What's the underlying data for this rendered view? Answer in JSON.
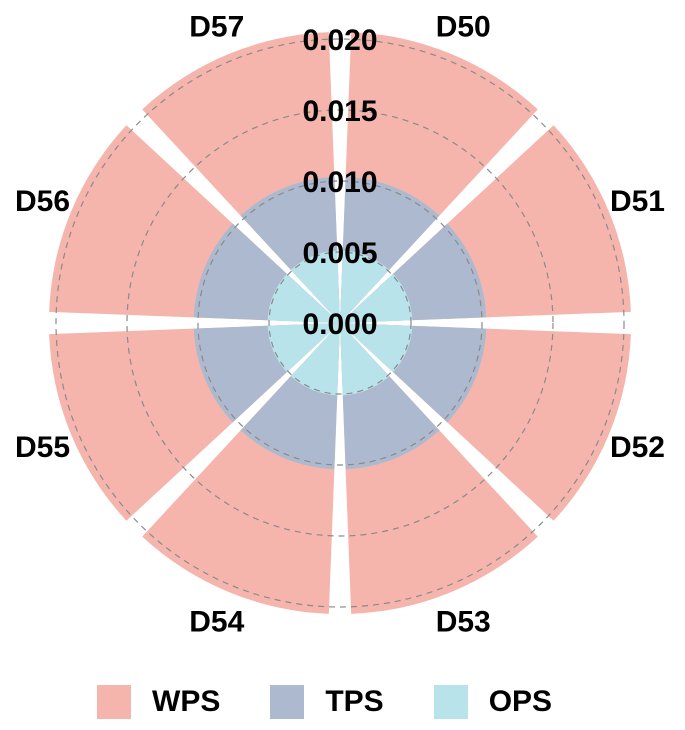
{
  "chart_data": {
    "type": "bar",
    "subtype": "polar-stacked-rose",
    "title": "",
    "categories": [
      "D50",
      "D51",
      "D52",
      "D53",
      "D54",
      "D55",
      "D56",
      "D57"
    ],
    "series": [
      {
        "name": "OPS",
        "color": "#b8e3eb",
        "values": [
          0.0051,
          0.0051,
          0.0051,
          0.0051,
          0.0051,
          0.0051,
          0.0051,
          0.0051
        ]
      },
      {
        "name": "TPS",
        "color": "#adb9cf",
        "values": [
          0.0103,
          0.0103,
          0.0103,
          0.0103,
          0.0103,
          0.0103,
          0.0103,
          0.0103
        ]
      },
      {
        "name": "WPS",
        "color": "#f5b5ad",
        "values": [
          0.0205,
          0.0205,
          0.0205,
          0.0205,
          0.0205,
          0.0205,
          0.0205,
          0.0205
        ]
      }
    ],
    "radial_ticks": [
      "0.000",
      "0.005",
      "0.010",
      "0.015",
      "0.020"
    ],
    "radial_tick_values": [
      0,
      0.005,
      0.01,
      0.015,
      0.02
    ],
    "rlim": [
      0,
      0.0205
    ],
    "grid": "dashed circular",
    "legend_position": "bottom",
    "xlabel": "",
    "ylabel": ""
  },
  "legend": [
    {
      "label": "WPS",
      "color": "#f5b5ad"
    },
    {
      "label": "TPS",
      "color": "#adb9cf"
    },
    {
      "label": "OPS",
      "color": "#b8e3eb"
    }
  ]
}
